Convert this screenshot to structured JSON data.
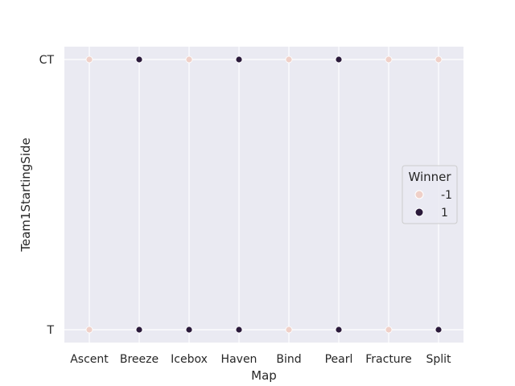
{
  "chart_data": {
    "type": "scatter",
    "title": "",
    "xlabel": "Map",
    "ylabel": "Team1StartingSide",
    "categories": [
      "Ascent",
      "Breeze",
      "Icebox",
      "Haven",
      "Bind",
      "Pearl",
      "Fracture",
      "Split"
    ],
    "y_categories": [
      "T",
      "CT"
    ],
    "grid": true,
    "legend": {
      "title": "Winner",
      "placement": "center-right",
      "entries": [
        {
          "label": "-1",
          "color": "#efd0c8"
        },
        {
          "label": "1",
          "color": "#2b1a3b"
        }
      ]
    },
    "points": [
      {
        "x": "Ascent",
        "y": "CT",
        "winner": "-1"
      },
      {
        "x": "Breeze",
        "y": "CT",
        "winner": "1"
      },
      {
        "x": "Icebox",
        "y": "CT",
        "winner": "-1"
      },
      {
        "x": "Haven",
        "y": "CT",
        "winner": "1"
      },
      {
        "x": "Bind",
        "y": "CT",
        "winner": "-1"
      },
      {
        "x": "Pearl",
        "y": "CT",
        "winner": "1"
      },
      {
        "x": "Fracture",
        "y": "CT",
        "winner": "-1"
      },
      {
        "x": "Split",
        "y": "CT",
        "winner": "-1"
      },
      {
        "x": "Ascent",
        "y": "T",
        "winner": "-1"
      },
      {
        "x": "Breeze",
        "y": "T",
        "winner": "1"
      },
      {
        "x": "Icebox",
        "y": "T",
        "winner": "1"
      },
      {
        "x": "Haven",
        "y": "T",
        "winner": "1"
      },
      {
        "x": "Bind",
        "y": "T",
        "winner": "-1"
      },
      {
        "x": "Pearl",
        "y": "T",
        "winner": "1"
      },
      {
        "x": "Fracture",
        "y": "T",
        "winner": "-1"
      },
      {
        "x": "Split",
        "y": "T",
        "winner": "1"
      }
    ],
    "colors": {
      "plot_background": "#eaeaf2",
      "gridline": "#ffffff",
      "text": "#262626"
    }
  }
}
